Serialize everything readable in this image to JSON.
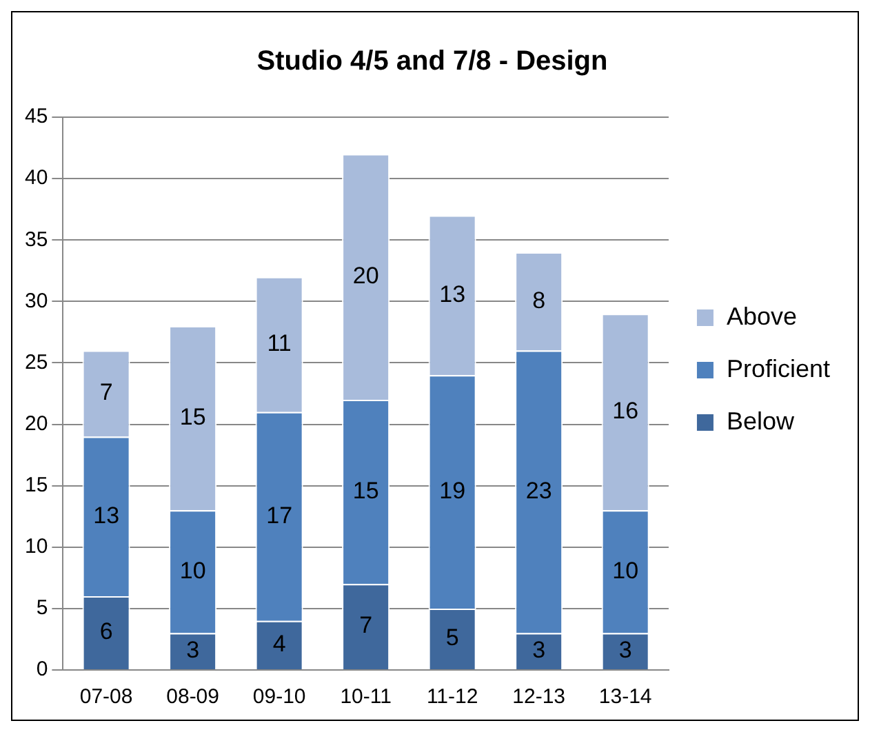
{
  "chart_data": {
    "type": "bar",
    "title": "Studio 4/5 and 7/8 - Design",
    "categories": [
      "07-08",
      "08-09",
      "09-10",
      "10-11",
      "11-12",
      "12-13",
      "13-14"
    ],
    "stacked": true,
    "series": [
      {
        "name": "Below",
        "color": "#3f689c",
        "values": [
          6,
          3,
          4,
          7,
          5,
          3,
          3
        ]
      },
      {
        "name": "Proficient",
        "color": "#4f81bd",
        "values": [
          13,
          10,
          17,
          15,
          19,
          23,
          10
        ]
      },
      {
        "name": "Above",
        "color": "#a8bbdb",
        "values": [
          7,
          15,
          11,
          20,
          13,
          8,
          16
        ]
      }
    ],
    "ylim": [
      0,
      45
    ],
    "yticks": [
      0,
      5,
      10,
      15,
      20,
      25,
      30,
      35,
      40,
      45
    ],
    "grid": "y",
    "legend": "right",
    "data_labels": true
  }
}
